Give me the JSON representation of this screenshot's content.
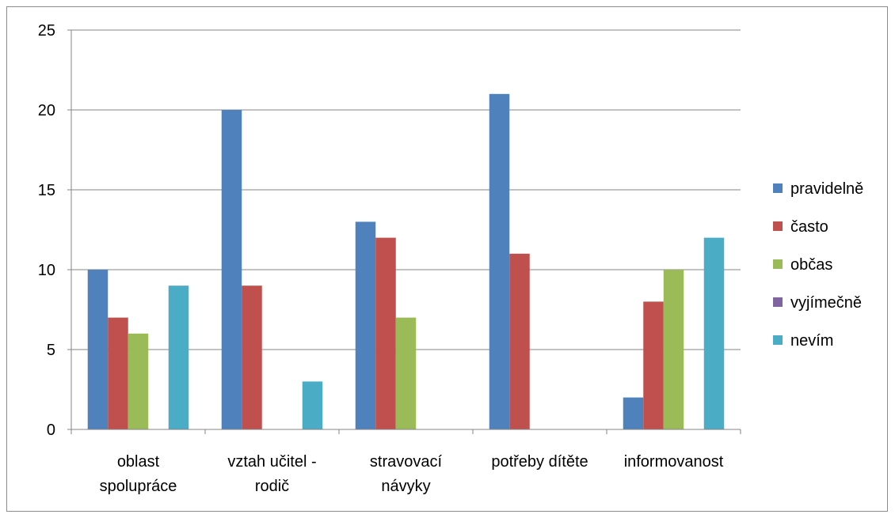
{
  "chart_data": {
    "type": "bar",
    "title": "",
    "xlabel": "",
    "ylabel": "",
    "ylim": [
      0,
      25
    ],
    "yticks": [
      0,
      5,
      10,
      15,
      20,
      25
    ],
    "grid": "horizontal",
    "legend_position": "right",
    "categories": [
      [
        "oblast",
        "spolupráce"
      ],
      [
        "vztah učitel -",
        "rodič"
      ],
      [
        "stravovací",
        "návyky"
      ],
      [
        "potřeby dítěte"
      ],
      [
        "informovanost"
      ]
    ],
    "series": [
      {
        "name": "pravidelně",
        "color": "#4f81bd",
        "values": [
          10,
          20,
          13,
          21,
          2
        ]
      },
      {
        "name": "často",
        "color": "#c0504d",
        "values": [
          7,
          9,
          12,
          11,
          8
        ]
      },
      {
        "name": "občas",
        "color": "#9bbb59",
        "values": [
          6,
          0,
          7,
          0,
          10
        ]
      },
      {
        "name": "vyjímečně",
        "color": "#8064a2",
        "values": [
          0,
          0,
          0,
          0,
          0
        ]
      },
      {
        "name": "nevím",
        "color": "#4bacc6",
        "values": [
          9,
          3,
          0,
          0,
          12
        ]
      }
    ]
  }
}
